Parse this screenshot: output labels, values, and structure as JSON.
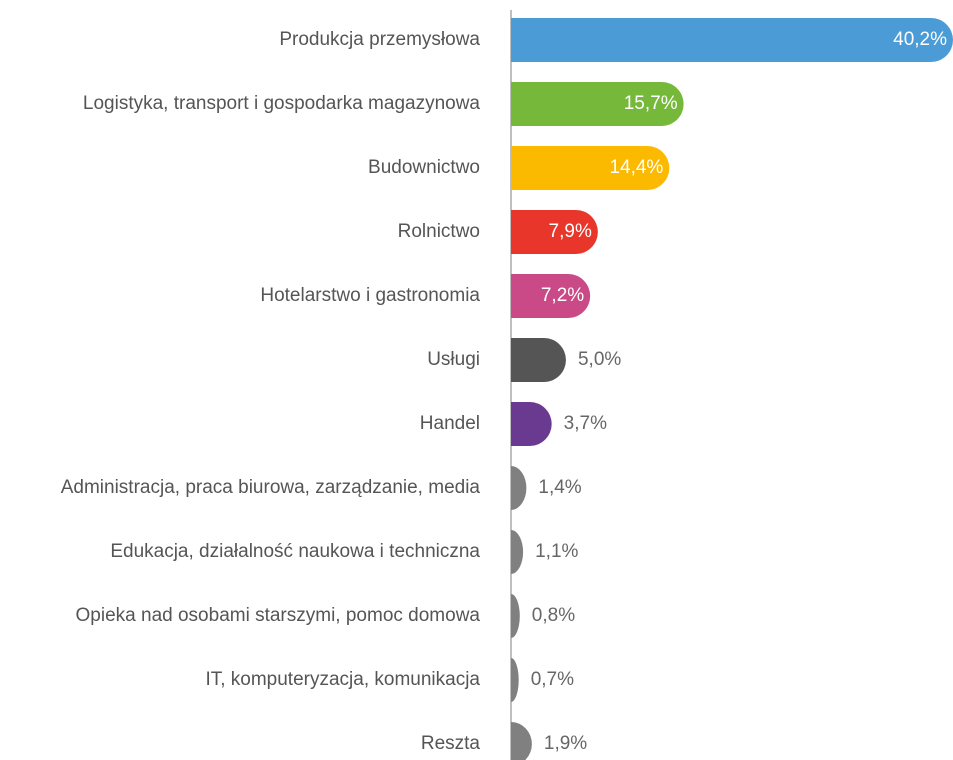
{
  "chart_data": {
    "type": "bar",
    "orientation": "horizontal",
    "categories": [
      "Produkcja przemysłowa",
      "Logistyka, transport i gospodarka magazynowa",
      "Budownictwo",
      "Rolnictwo",
      "Hotelarstwo i gastronomia",
      "Usługi",
      "Handel",
      "Administracja, praca biurowa, zarządzanie, media",
      "Edukacja, działalność naukowa i techniczna",
      "Opieka nad osobami starszymi, pomoc domowa",
      "IT, komputeryzacja, komunikacja",
      "Reszta"
    ],
    "values": [
      40.2,
      15.7,
      14.4,
      7.9,
      7.2,
      5.0,
      3.7,
      1.4,
      1.1,
      0.8,
      0.7,
      1.9
    ],
    "value_labels": [
      "40,2%",
      "15,7%",
      "14,4%",
      "7,9%",
      "7,2%",
      "5,0%",
      "3,7%",
      "1,4%",
      "1,1%",
      "0,8%",
      "0,7%",
      "1,9%"
    ],
    "colors": [
      "#4a9bd6",
      "#76b83a",
      "#fbb900",
      "#e8362a",
      "#c94a87",
      "#555555",
      "#6a3a91",
      "#808080",
      "#808080",
      "#808080",
      "#808080",
      "#808080"
    ]
  }
}
